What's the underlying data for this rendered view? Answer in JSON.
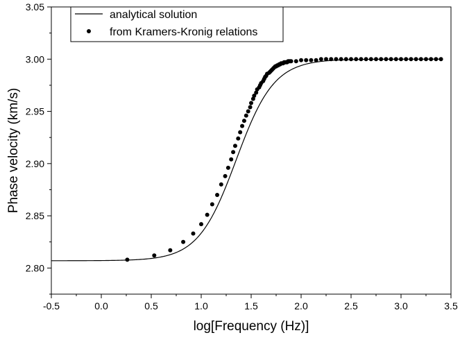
{
  "chart_data": {
    "type": "line",
    "xlabel": "log[Frequency (Hz)]",
    "ylabel": "Phase velocity (km/s)",
    "xlim": [
      -0.5,
      3.5
    ],
    "ylim": [
      2.775,
      3.05
    ],
    "x_ticks": [
      -0.5,
      0.0,
      0.5,
      1.0,
      1.5,
      2.0,
      2.5,
      3.0,
      3.5
    ],
    "x_tick_labels": [
      "-0.5",
      "0.0",
      "0.5",
      "1.0",
      "1.5",
      "2.0",
      "2.5",
      "3.0",
      "3.5"
    ],
    "y_ticks": [
      2.8,
      2.85,
      2.9,
      2.95,
      3.0,
      3.05
    ],
    "y_tick_labels": [
      "2.80",
      "2.85",
      "2.90",
      "2.95",
      "3.00",
      "3.05"
    ],
    "grid": false,
    "legend_position": "top-left",
    "legend": [
      {
        "label": "analytical solution",
        "marker": "line"
      },
      {
        "label": "from Kramers-Kronig relations",
        "marker": "dot"
      }
    ],
    "series": [
      {
        "name": "analytical solution",
        "style": "line",
        "model": {
          "low": 2.807,
          "high": 3.0,
          "center": 1.35,
          "width": 0.19
        },
        "x_range": [
          -0.5,
          3.4
        ],
        "color": "#000000"
      },
      {
        "name": "from Kramers-Kronig relations",
        "style": "points",
        "color": "#000000",
        "points": [
          [
            0.26,
            2.808
          ],
          [
            0.53,
            2.812
          ],
          [
            0.69,
            2.817
          ],
          [
            0.82,
            2.825
          ],
          [
            0.92,
            2.833
          ],
          [
            1.0,
            2.842
          ],
          [
            1.06,
            2.851
          ],
          [
            1.11,
            2.861
          ],
          [
            1.16,
            2.87
          ],
          [
            1.2,
            2.88
          ],
          [
            1.24,
            2.888
          ],
          [
            1.27,
            2.896
          ],
          [
            1.3,
            2.904
          ],
          [
            1.32,
            2.911
          ],
          [
            1.34,
            2.917
          ],
          [
            1.37,
            2.924
          ],
          [
            1.39,
            2.93
          ],
          [
            1.41,
            2.936
          ],
          [
            1.43,
            2.941
          ],
          [
            1.45,
            2.946
          ],
          [
            1.47,
            2.95
          ],
          [
            1.49,
            2.954
          ],
          [
            1.5,
            2.958
          ],
          [
            1.52,
            2.962
          ],
          [
            1.53,
            2.965
          ],
          [
            1.55,
            2.968
          ],
          [
            1.56,
            2.971
          ],
          [
            1.58,
            2.973
          ],
          [
            1.59,
            2.975
          ],
          [
            1.6,
            2.977
          ],
          [
            1.62,
            2.979
          ],
          [
            1.63,
            2.981
          ],
          [
            1.64,
            2.983
          ],
          [
            1.65,
            2.984
          ],
          [
            1.66,
            2.986
          ],
          [
            1.68,
            2.987
          ],
          [
            1.69,
            2.988
          ],
          [
            1.7,
            2.989
          ],
          [
            1.71,
            2.99
          ],
          [
            1.72,
            2.991
          ],
          [
            1.73,
            2.992
          ],
          [
            1.74,
            2.993
          ],
          [
            1.75,
            2.993
          ],
          [
            1.76,
            2.994
          ],
          [
            1.77,
            2.994
          ],
          [
            1.78,
            2.995
          ],
          [
            1.79,
            2.995
          ],
          [
            1.8,
            2.996
          ],
          [
            1.81,
            2.996
          ],
          [
            1.82,
            2.996
          ],
          [
            1.83,
            2.997
          ],
          [
            1.84,
            2.997
          ],
          [
            1.85,
            2.997
          ],
          [
            1.86,
            2.997
          ],
          [
            1.87,
            2.998
          ],
          [
            1.88,
            2.998
          ],
          [
            1.89,
            2.998
          ],
          [
            1.9,
            2.998
          ],
          [
            1.95,
            2.998
          ],
          [
            2.0,
            2.999
          ],
          [
            2.05,
            2.999
          ],
          [
            2.1,
            2.999
          ],
          [
            2.15,
            2.999
          ],
          [
            2.2,
            3.0
          ],
          [
            2.25,
            3.0
          ],
          [
            2.3,
            3.0
          ],
          [
            2.35,
            3.0
          ],
          [
            2.4,
            3.0
          ],
          [
            2.45,
            3.0
          ],
          [
            2.5,
            3.0
          ],
          [
            2.55,
            3.0
          ],
          [
            2.6,
            3.0
          ],
          [
            2.65,
            3.0
          ],
          [
            2.7,
            3.0
          ],
          [
            2.75,
            3.0
          ],
          [
            2.8,
            3.0
          ],
          [
            2.85,
            3.0
          ],
          [
            2.9,
            3.0
          ],
          [
            2.95,
            3.0
          ],
          [
            3.0,
            3.0
          ],
          [
            3.05,
            3.0
          ],
          [
            3.1,
            3.0
          ],
          [
            3.15,
            3.0
          ],
          [
            3.2,
            3.0
          ],
          [
            3.25,
            3.0
          ],
          [
            3.3,
            3.0
          ],
          [
            3.35,
            3.0
          ],
          [
            3.4,
            3.0
          ]
        ]
      }
    ]
  }
}
